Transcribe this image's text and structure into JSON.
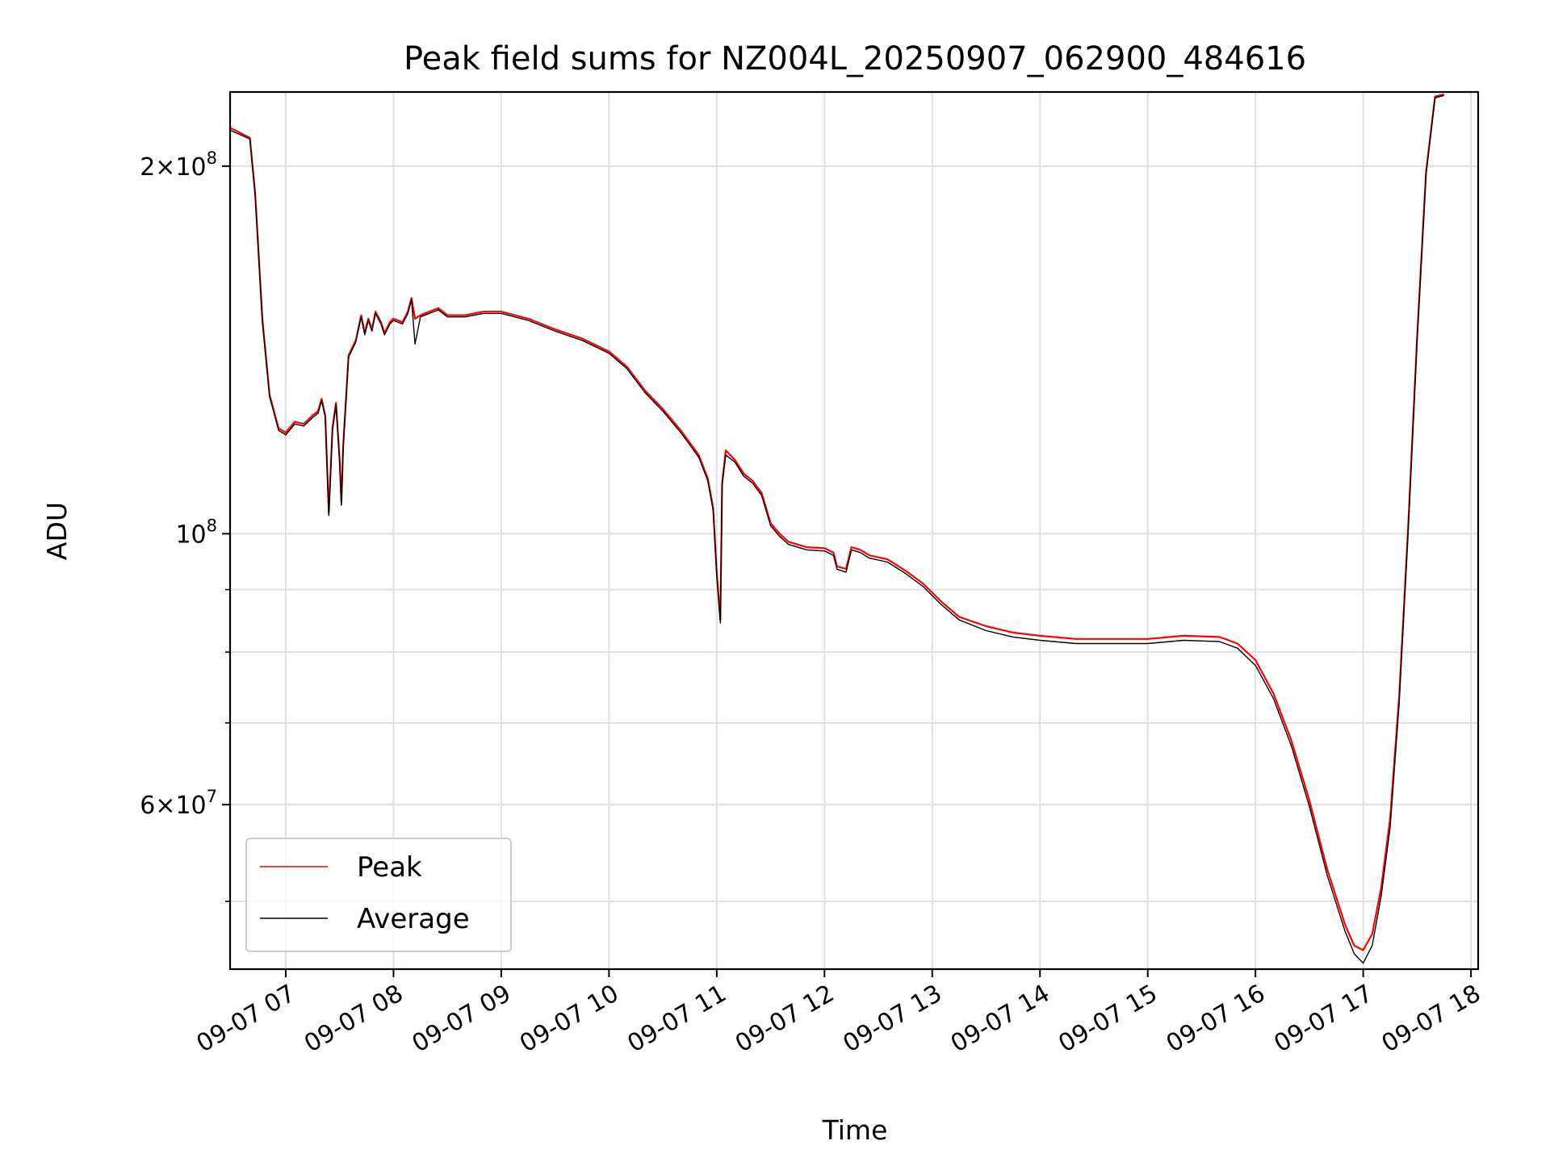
{
  "chart_data": {
    "type": "line",
    "title": "Peak field sums for NZ004L_20250907_062900_484616",
    "xlabel": "Time",
    "ylabel": "ADU",
    "yscale": "log",
    "ylim": [
      44000000,
      230000000
    ],
    "xlim": [
      "2025-09-07 06:29",
      "2025-09-07 18:04"
    ],
    "grid": true,
    "legend_position": "lower-left",
    "x_ticks": [
      {
        "time": "2025-09-07 07:00",
        "label": "09-07 07"
      },
      {
        "time": "2025-09-07 08:00",
        "label": "09-07 08"
      },
      {
        "time": "2025-09-07 09:00",
        "label": "09-07 09"
      },
      {
        "time": "2025-09-07 10:00",
        "label": "09-07 10"
      },
      {
        "time": "2025-09-07 11:00",
        "label": "09-07 11"
      },
      {
        "time": "2025-09-07 12:00",
        "label": "09-07 12"
      },
      {
        "time": "2025-09-07 13:00",
        "label": "09-07 13"
      },
      {
        "time": "2025-09-07 14:00",
        "label": "09-07 14"
      },
      {
        "time": "2025-09-07 15:00",
        "label": "09-07 15"
      },
      {
        "time": "2025-09-07 16:00",
        "label": "09-07 16"
      },
      {
        "time": "2025-09-07 17:00",
        "label": "09-07 17"
      },
      {
        "time": "2025-09-07 18:00",
        "label": "09-07 18"
      }
    ],
    "y_ticks": [
      {
        "value": 60000000,
        "mantissa": "6",
        "exponent": "7"
      },
      {
        "value": 100000000,
        "mantissa": "",
        "exponent": "8"
      },
      {
        "value": 200000000,
        "mantissa": "2",
        "exponent": "8"
      }
    ],
    "y_minor_ticks": [
      50000000,
      70000000,
      80000000,
      90000000
    ],
    "series": [
      {
        "name": "Peak",
        "color": "#ff0000",
        "points": [
          [
            "2025-09-07 06:29",
            215000000
          ],
          [
            "2025-09-07 06:40",
            211000000
          ],
          [
            "2025-09-07 06:43",
            190000000
          ],
          [
            "2025-09-07 06:47",
            150000000
          ],
          [
            "2025-09-07 06:51",
            130000000
          ],
          [
            "2025-09-07 06:56",
            122000000
          ],
          [
            "2025-09-07 07:00",
            121000000
          ],
          [
            "2025-09-07 07:05",
            123500000
          ],
          [
            "2025-09-07 07:10",
            123000000
          ],
          [
            "2025-09-07 07:15",
            125000000
          ],
          [
            "2025-09-07 07:18",
            126000000
          ],
          [
            "2025-09-07 07:20",
            129000000
          ],
          [
            "2025-09-07 07:22",
            125000000
          ],
          [
            "2025-09-07 07:24",
            104000000
          ],
          [
            "2025-09-07 07:26",
            122000000
          ],
          [
            "2025-09-07 07:28",
            128000000
          ],
          [
            "2025-09-07 07:30",
            115000000
          ],
          [
            "2025-09-07 07:31",
            106000000
          ],
          [
            "2025-09-07 07:32",
            118000000
          ],
          [
            "2025-09-07 07:35",
            140000000
          ],
          [
            "2025-09-07 07:39",
            144000000
          ],
          [
            "2025-09-07 07:42",
            151000000
          ],
          [
            "2025-09-07 07:44",
            146000000
          ],
          [
            "2025-09-07 07:46",
            150000000
          ],
          [
            "2025-09-07 07:48",
            147000000
          ],
          [
            "2025-09-07 07:50",
            152000000
          ],
          [
            "2025-09-07 07:53",
            149000000
          ],
          [
            "2025-09-07 07:55",
            146000000
          ],
          [
            "2025-09-07 07:58",
            149000000
          ],
          [
            "2025-09-07 08:00",
            150000000
          ],
          [
            "2025-09-07 08:05",
            149000000
          ],
          [
            "2025-09-07 08:08",
            152000000
          ],
          [
            "2025-09-07 08:10",
            156000000
          ],
          [
            "2025-09-07 08:12",
            150000000
          ],
          [
            "2025-09-07 08:15",
            151000000
          ],
          [
            "2025-09-07 08:20",
            152000000
          ],
          [
            "2025-09-07 08:25",
            153000000
          ],
          [
            "2025-09-07 08:30",
            151000000
          ],
          [
            "2025-09-07 08:40",
            151000000
          ],
          [
            "2025-09-07 08:50",
            152000000
          ],
          [
            "2025-09-07 09:00",
            152000000
          ],
          [
            "2025-09-07 09:15",
            150000000
          ],
          [
            "2025-09-07 09:30",
            147000000
          ],
          [
            "2025-09-07 09:45",
            144500000
          ],
          [
            "2025-09-07 10:00",
            141000000
          ],
          [
            "2025-09-07 10:10",
            137000000
          ],
          [
            "2025-09-07 10:20",
            131000000
          ],
          [
            "2025-09-07 10:30",
            126500000
          ],
          [
            "2025-09-07 10:40",
            121500000
          ],
          [
            "2025-09-07 10:50",
            116000000
          ],
          [
            "2025-09-07 10:55",
            111000000
          ],
          [
            "2025-09-07 10:58",
            105000000
          ],
          [
            "2025-09-07 11:00",
            93000000
          ],
          [
            "2025-09-07 11:02",
            85000000
          ],
          [
            "2025-09-07 11:03",
            110000000
          ],
          [
            "2025-09-07 11:05",
            117000000
          ],
          [
            "2025-09-07 11:10",
            115000000
          ],
          [
            "2025-09-07 11:15",
            112000000
          ],
          [
            "2025-09-07 11:20",
            110500000
          ],
          [
            "2025-09-07 11:25",
            108000000
          ],
          [
            "2025-09-07 11:30",
            102000000
          ],
          [
            "2025-09-07 11:35",
            100000000
          ],
          [
            "2025-09-07 11:40",
            98500000
          ],
          [
            "2025-09-07 11:50",
            97500000
          ],
          [
            "2025-09-07 12:00",
            97300000
          ],
          [
            "2025-09-07 12:05",
            96500000
          ],
          [
            "2025-09-07 12:07",
            94000000
          ],
          [
            "2025-09-07 12:12",
            93600000
          ],
          [
            "2025-09-07 12:15",
            97500000
          ],
          [
            "2025-09-07 12:20",
            97000000
          ],
          [
            "2025-09-07 12:25",
            96000000
          ],
          [
            "2025-09-07 12:35",
            95300000
          ],
          [
            "2025-09-07 12:45",
            93300000
          ],
          [
            "2025-09-07 12:55",
            91000000
          ],
          [
            "2025-09-07 13:05",
            88000000
          ],
          [
            "2025-09-07 13:15",
            85500000
          ],
          [
            "2025-09-07 13:30",
            84000000
          ],
          [
            "2025-09-07 13:45",
            83000000
          ],
          [
            "2025-09-07 14:00",
            82500000
          ],
          [
            "2025-09-07 14:20",
            82000000
          ],
          [
            "2025-09-07 14:40",
            82000000
          ],
          [
            "2025-09-07 15:00",
            82000000
          ],
          [
            "2025-09-07 15:20",
            82500000
          ],
          [
            "2025-09-07 15:40",
            82300000
          ],
          [
            "2025-09-07 15:50",
            81300000
          ],
          [
            "2025-09-07 16:00",
            78800000
          ],
          [
            "2025-09-07 16:10",
            74000000
          ],
          [
            "2025-09-07 16:20",
            67700000
          ],
          [
            "2025-09-07 16:30",
            60500000
          ],
          [
            "2025-09-07 16:40",
            53100000
          ],
          [
            "2025-09-07 16:50",
            47800000
          ],
          [
            "2025-09-07 16:55",
            46000000
          ],
          [
            "2025-09-07 17:00",
            45600000
          ],
          [
            "2025-09-07 17:05",
            47000000
          ],
          [
            "2025-09-07 17:10",
            51300000
          ],
          [
            "2025-09-07 17:15",
            58500000
          ],
          [
            "2025-09-07 17:20",
            73500000
          ],
          [
            "2025-09-07 17:25",
            101000000
          ],
          [
            "2025-09-07 17:30",
            145000000
          ],
          [
            "2025-09-07 17:35",
            198000000
          ],
          [
            "2025-09-07 17:40",
            228000000
          ],
          [
            "2025-09-07 17:45",
            229000000
          ]
        ]
      },
      {
        "name": "Average",
        "color": "#000000",
        "points": [
          [
            "2025-09-07 06:29",
            214000000
          ],
          [
            "2025-09-07 06:40",
            210500000
          ],
          [
            "2025-09-07 06:43",
            189000000
          ],
          [
            "2025-09-07 06:47",
            149000000
          ],
          [
            "2025-09-07 06:51",
            129500000
          ],
          [
            "2025-09-07 06:56",
            121500000
          ],
          [
            "2025-09-07 07:00",
            120500000
          ],
          [
            "2025-09-07 07:05",
            123000000
          ],
          [
            "2025-09-07 07:10",
            122500000
          ],
          [
            "2025-09-07 07:15",
            124500000
          ],
          [
            "2025-09-07 07:18",
            125500000
          ],
          [
            "2025-09-07 07:20",
            128500000
          ],
          [
            "2025-09-07 07:22",
            124500000
          ],
          [
            "2025-09-07 07:24",
            103500000
          ],
          [
            "2025-09-07 07:26",
            121500000
          ],
          [
            "2025-09-07 07:28",
            127500000
          ],
          [
            "2025-09-07 07:30",
            114500000
          ],
          [
            "2025-09-07 07:31",
            105500000
          ],
          [
            "2025-09-07 07:32",
            117500000
          ],
          [
            "2025-09-07 07:35",
            139500000
          ],
          [
            "2025-09-07 07:39",
            143500000
          ],
          [
            "2025-09-07 07:42",
            150500000
          ],
          [
            "2025-09-07 07:44",
            145500000
          ],
          [
            "2025-09-07 07:46",
            149500000
          ],
          [
            "2025-09-07 07:48",
            146500000
          ],
          [
            "2025-09-07 07:50",
            151500000
          ],
          [
            "2025-09-07 07:53",
            148500000
          ],
          [
            "2025-09-07 07:55",
            145500000
          ],
          [
            "2025-09-07 07:58",
            148500000
          ],
          [
            "2025-09-07 08:00",
            149500000
          ],
          [
            "2025-09-07 08:05",
            148500000
          ],
          [
            "2025-09-07 08:08",
            151500000
          ],
          [
            "2025-09-07 08:10",
            155500000
          ],
          [
            "2025-09-07 08:12",
            143000000
          ],
          [
            "2025-09-07 08:15",
            150500000
          ],
          [
            "2025-09-07 08:20",
            151500000
          ],
          [
            "2025-09-07 08:25",
            152500000
          ],
          [
            "2025-09-07 08:30",
            150500000
          ],
          [
            "2025-09-07 08:40",
            150500000
          ],
          [
            "2025-09-07 08:50",
            151500000
          ],
          [
            "2025-09-07 09:00",
            151500000
          ],
          [
            "2025-09-07 09:15",
            149500000
          ],
          [
            "2025-09-07 09:30",
            146500000
          ],
          [
            "2025-09-07 09:45",
            144000000
          ],
          [
            "2025-09-07 10:00",
            140500000
          ],
          [
            "2025-09-07 10:10",
            136500000
          ],
          [
            "2025-09-07 10:20",
            130500000
          ],
          [
            "2025-09-07 10:30",
            126000000
          ],
          [
            "2025-09-07 10:40",
            121000000
          ],
          [
            "2025-09-07 10:50",
            115500000
          ],
          [
            "2025-09-07 10:55",
            110500000
          ],
          [
            "2025-09-07 10:58",
            104500000
          ],
          [
            "2025-09-07 11:00",
            92500000
          ],
          [
            "2025-09-07 11:02",
            84500000
          ],
          [
            "2025-09-07 11:03",
            109500000
          ],
          [
            "2025-09-07 11:05",
            116000000
          ],
          [
            "2025-09-07 11:10",
            114500000
          ],
          [
            "2025-09-07 11:15",
            111500000
          ],
          [
            "2025-09-07 11:20",
            110000000
          ],
          [
            "2025-09-07 11:25",
            107500000
          ],
          [
            "2025-09-07 11:30",
            101500000
          ],
          [
            "2025-09-07 11:35",
            99500000
          ],
          [
            "2025-09-07 11:40",
            98000000
          ],
          [
            "2025-09-07 11:50",
            97000000
          ],
          [
            "2025-09-07 12:00",
            96800000
          ],
          [
            "2025-09-07 12:05",
            96000000
          ],
          [
            "2025-09-07 12:07",
            93500000
          ],
          [
            "2025-09-07 12:12",
            93000000
          ],
          [
            "2025-09-07 12:15",
            97000000
          ],
          [
            "2025-09-07 12:20",
            96500000
          ],
          [
            "2025-09-07 12:25",
            95500000
          ],
          [
            "2025-09-07 12:35",
            94800000
          ],
          [
            "2025-09-07 12:45",
            92800000
          ],
          [
            "2025-09-07 12:55",
            90500000
          ],
          [
            "2025-09-07 13:05",
            87500000
          ],
          [
            "2025-09-07 13:15",
            85000000
          ],
          [
            "2025-09-07 13:30",
            83300000
          ],
          [
            "2025-09-07 13:45",
            82300000
          ],
          [
            "2025-09-07 14:00",
            81800000
          ],
          [
            "2025-09-07 14:20",
            81300000
          ],
          [
            "2025-09-07 14:40",
            81300000
          ],
          [
            "2025-09-07 15:00",
            81300000
          ],
          [
            "2025-09-07 15:20",
            81800000
          ],
          [
            "2025-09-07 15:40",
            81600000
          ],
          [
            "2025-09-07 15:50",
            80600000
          ],
          [
            "2025-09-07 16:00",
            78000000
          ],
          [
            "2025-09-07 16:10",
            73300000
          ],
          [
            "2025-09-07 16:20",
            67000000
          ],
          [
            "2025-09-07 16:30",
            59800000
          ],
          [
            "2025-09-07 16:40",
            52500000
          ],
          [
            "2025-09-07 16:50",
            47200000
          ],
          [
            "2025-09-07 16:55",
            45300000
          ],
          [
            "2025-09-07 17:00",
            44500000
          ],
          [
            "2025-09-07 17:05",
            46000000
          ],
          [
            "2025-09-07 17:10",
            50500000
          ],
          [
            "2025-09-07 17:15",
            57500000
          ],
          [
            "2025-09-07 17:20",
            72500000
          ],
          [
            "2025-09-07 17:25",
            100000000
          ],
          [
            "2025-09-07 17:30",
            144000000
          ],
          [
            "2025-09-07 17:35",
            197000000
          ],
          [
            "2025-09-07 17:40",
            227500000
          ],
          [
            "2025-09-07 17:45",
            228500000
          ]
        ]
      }
    ]
  },
  "colors": {
    "peak": "#ff0000",
    "average": "#000000",
    "grid": "#e0e0e0",
    "axes": "#000000",
    "background": "#ffffff"
  }
}
